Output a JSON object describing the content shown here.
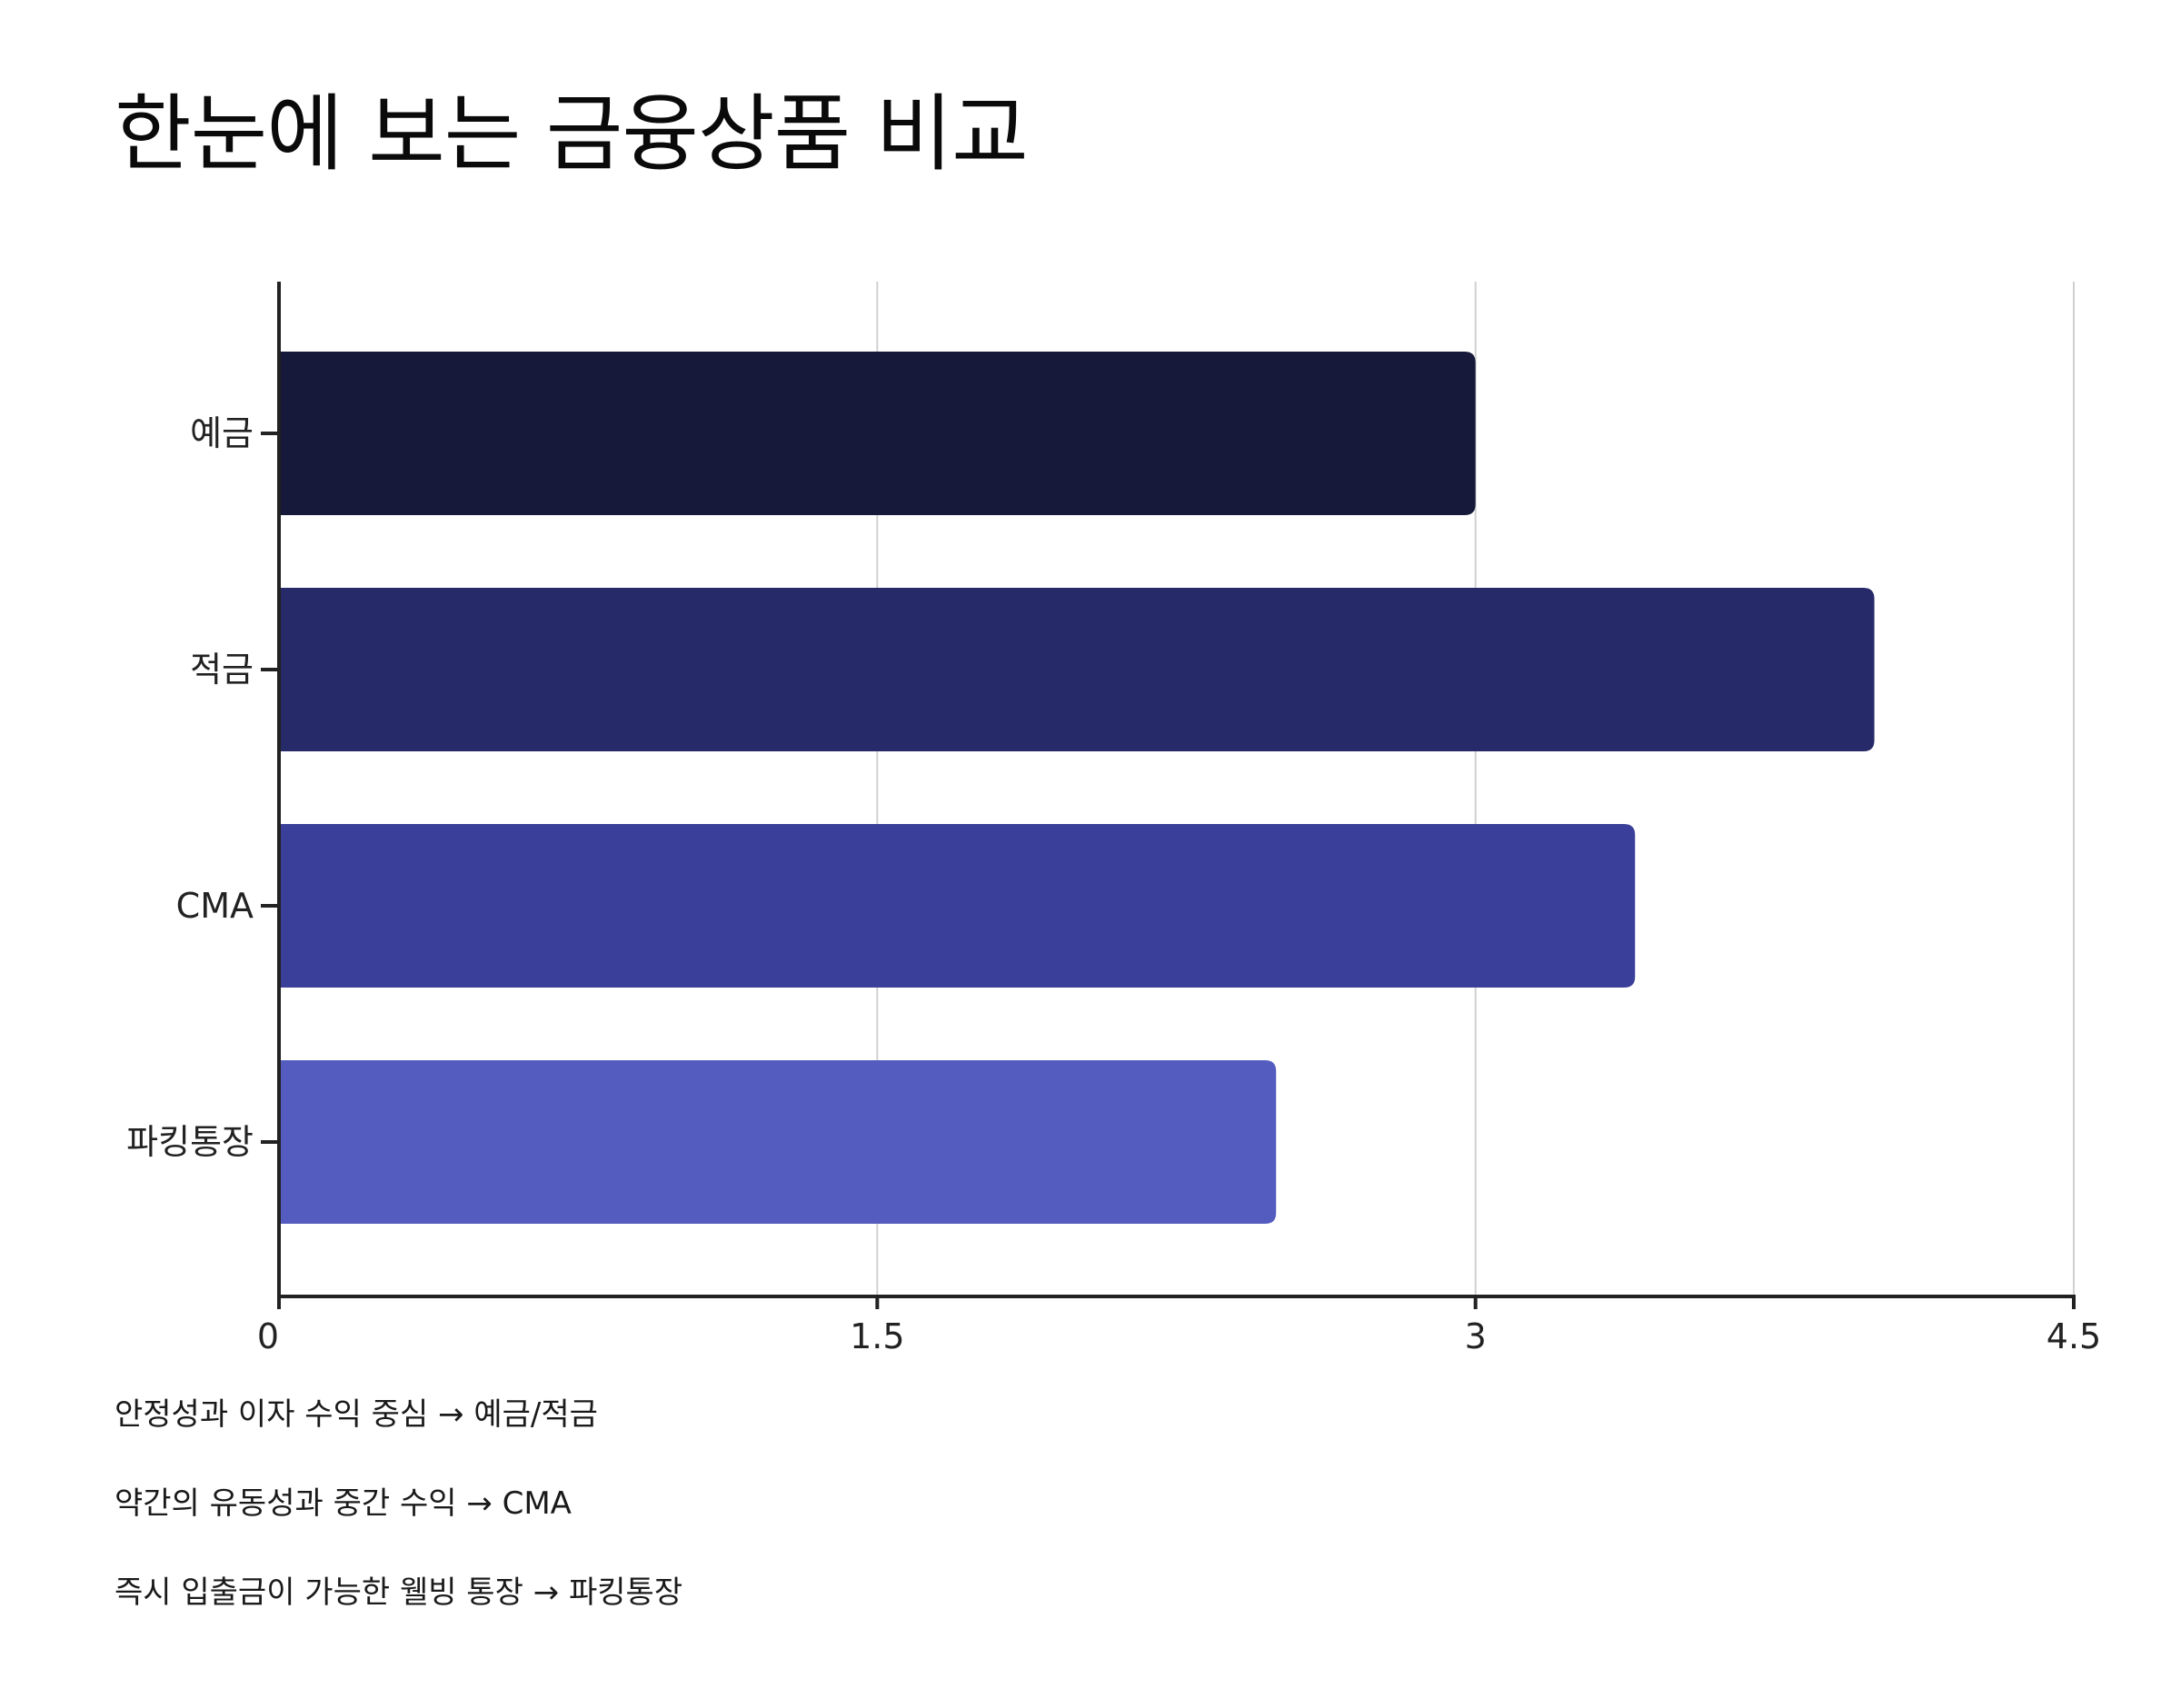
{
  "chart_data": {
    "type": "bar",
    "orientation": "horizontal",
    "title": "한눈에 보는 금융상품 비교",
    "categories": [
      "예금",
      "적금",
      "CMA",
      "파킹통장"
    ],
    "values": [
      3.0,
      4.0,
      3.4,
      2.5
    ],
    "colors": [
      "#16193a",
      "#262a69",
      "#3a3f99",
      "#545dbf"
    ],
    "xlim": [
      0,
      4.5
    ],
    "xticks": [
      "0",
      "1.5",
      "3",
      "4.5"
    ],
    "xtick_values": [
      0,
      1.5,
      3,
      4.5
    ],
    "grid": "vertical gridlines on",
    "xlabel": "",
    "ylabel": ""
  },
  "notes": [
    "안정성과 이자 수익 중심 → 예금/적금",
    "약간의 유동성과 중간 수익 → CMA",
    "즉시 입출금이 가능한 웰빙 통장 → 파킹통장"
  ]
}
